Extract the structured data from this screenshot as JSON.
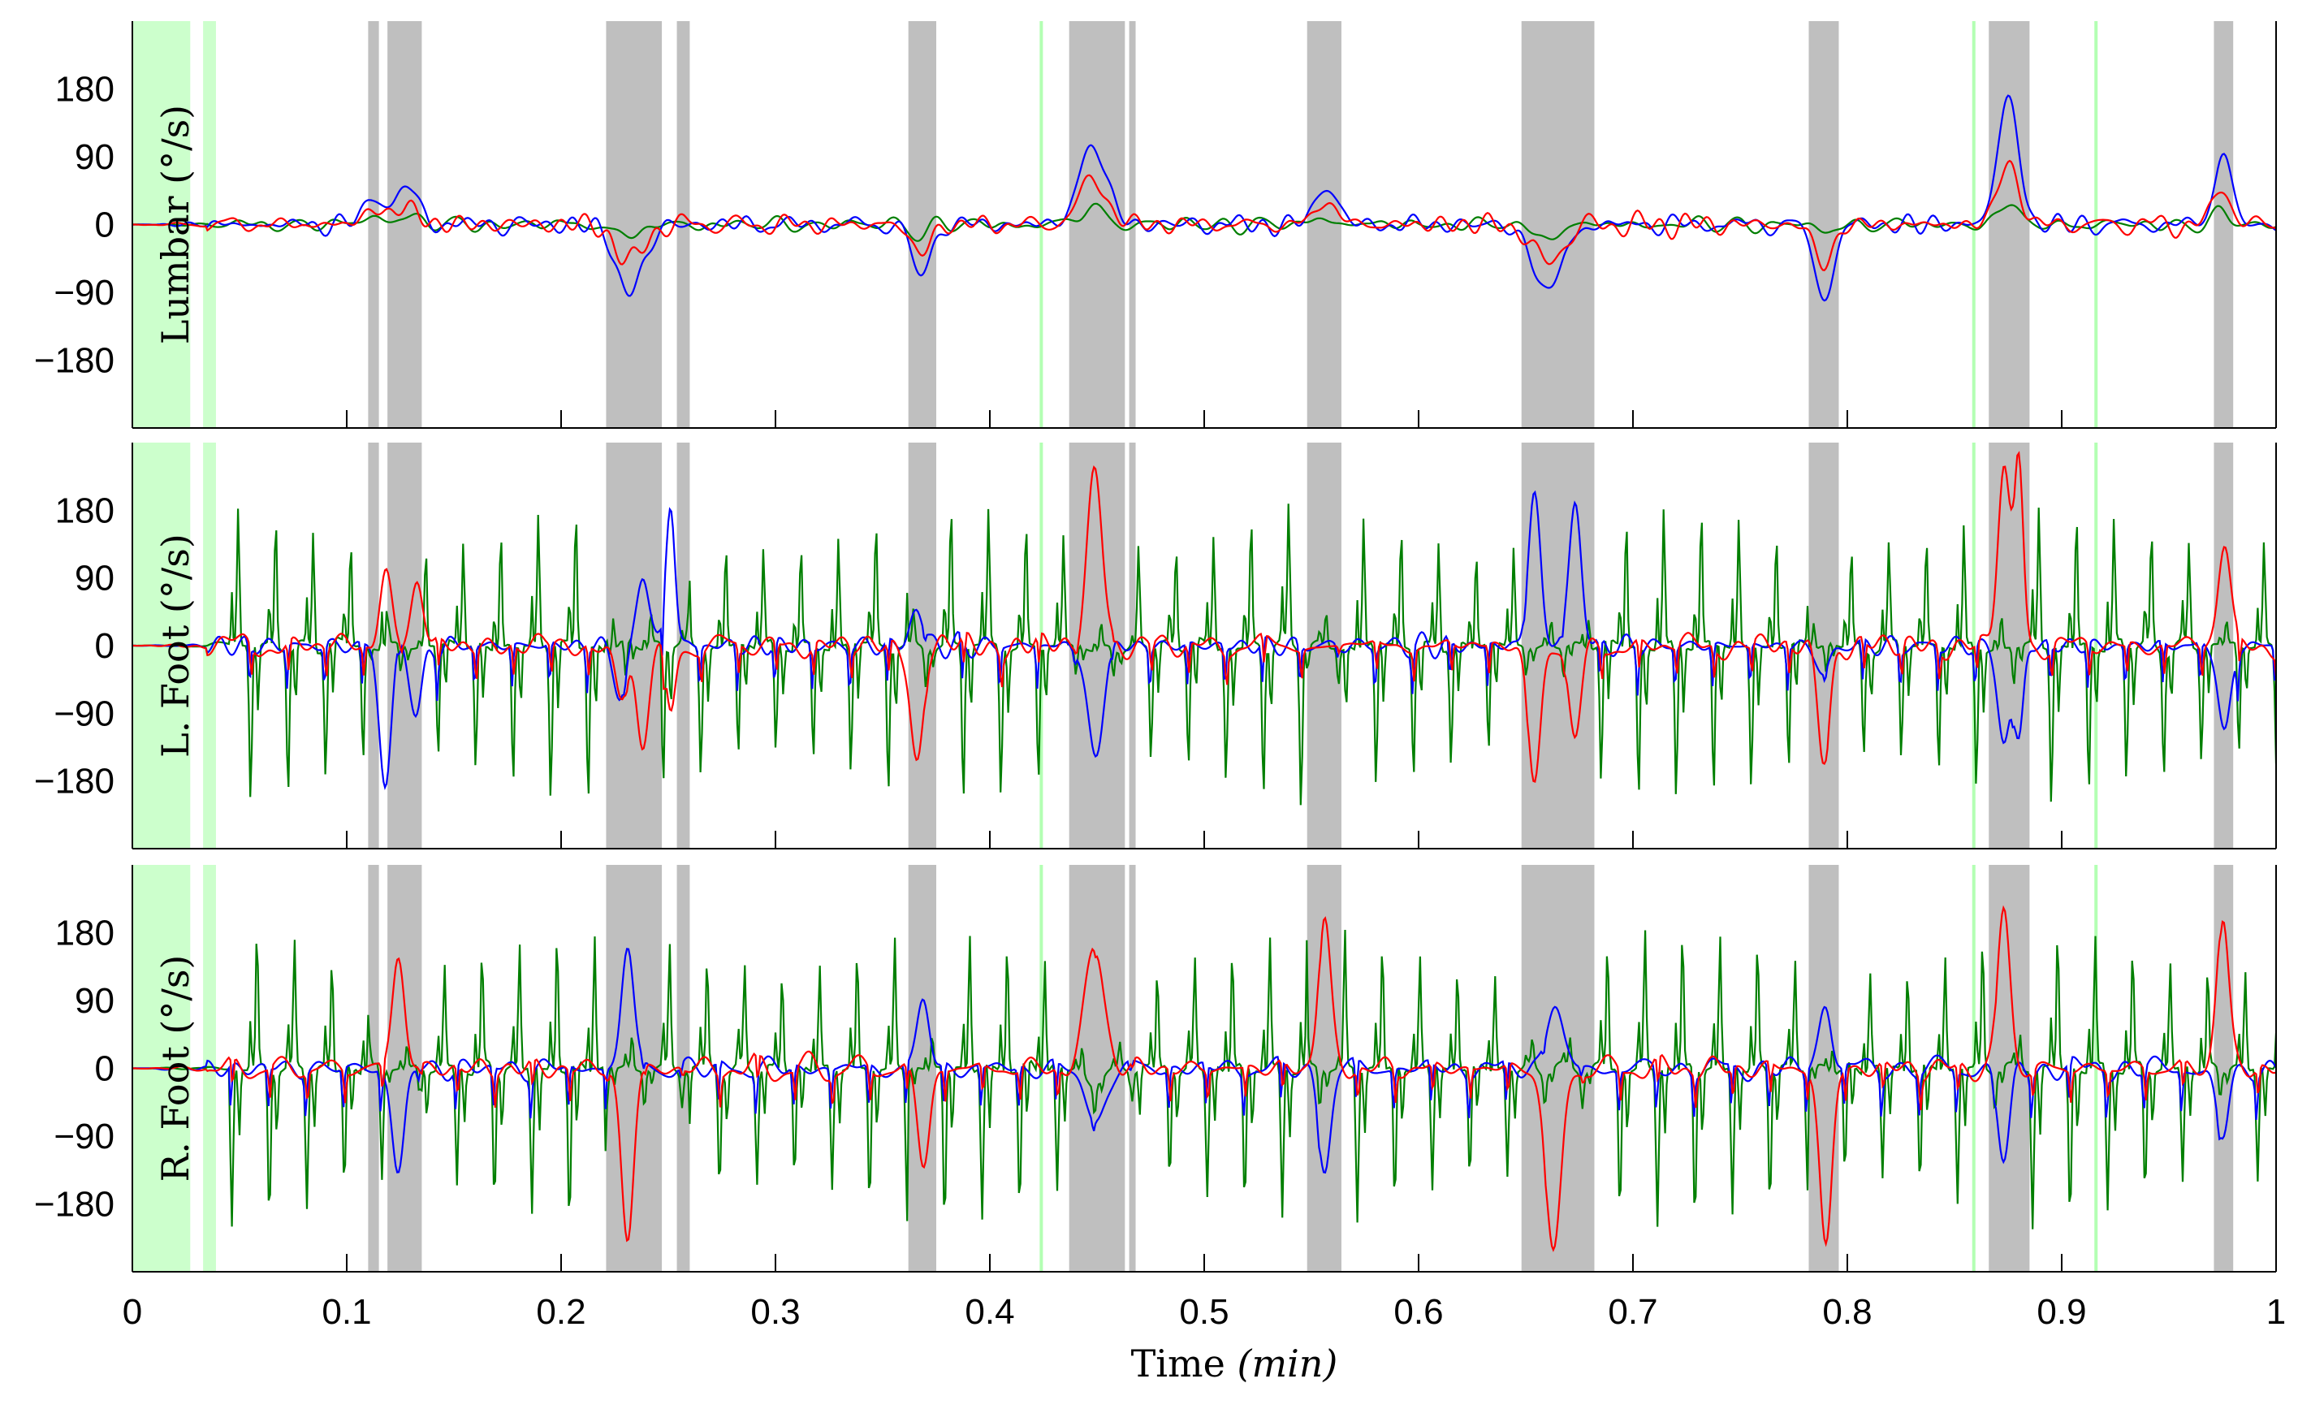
{
  "chart_data": {
    "type": "line",
    "xlabel_text": "Time",
    "xlabel_unit": "(min)",
    "xlim": [
      0,
      1
    ],
    "x_ticks": [
      "0",
      "0.1",
      "0.2",
      "0.3",
      "0.4",
      "0.5",
      "0.6",
      "0.7",
      "0.8",
      "0.9",
      "1"
    ],
    "y_ticks": [
      "180",
      "90",
      "0",
      "−90",
      "−180"
    ],
    "ylim": [
      -270,
      270
    ],
    "colors": {
      "blue": "#0000ff",
      "red": "#ff0000",
      "green": "#007f00",
      "gray": "#bfbfbf",
      "lightgreen": "#ccffcc",
      "thin_green": "#b3ffb3"
    },
    "series_names": [
      "blue",
      "red",
      "green"
    ],
    "gray_intervals": [
      [
        0.11,
        0.115
      ],
      [
        0.119,
        0.135
      ],
      [
        0.221,
        0.247
      ],
      [
        0.254,
        0.26
      ],
      [
        0.362,
        0.375
      ],
      [
        0.437,
        0.463
      ],
      [
        0.465,
        0.468
      ],
      [
        0.548,
        0.564
      ],
      [
        0.648,
        0.682
      ],
      [
        0.782,
        0.796
      ],
      [
        0.866,
        0.885
      ],
      [
        0.971,
        0.98
      ]
    ],
    "green_intervals": [
      [
        0.0,
        0.027
      ],
      [
        0.033,
        0.039
      ]
    ],
    "green_lines": [
      0.424,
      0.859,
      0.916
    ],
    "panels": [
      {
        "id": "lumbar",
        "ylabel": "Lumbar (°/s)",
        "events": [
          {
            "t": 0.113,
            "s": 0.007,
            "blue": 35,
            "red": 20,
            "green": 10
          },
          {
            "t": 0.128,
            "s": 0.008,
            "blue": 45,
            "red": 22,
            "green": 10
          },
          {
            "t": 0.232,
            "s": 0.009,
            "blue": -90,
            "red": -50,
            "green": -15
          },
          {
            "t": 0.368,
            "s": 0.006,
            "blue": -70,
            "red": -40,
            "green": -10
          },
          {
            "t": 0.448,
            "s": 0.009,
            "blue": 105,
            "red": 60,
            "green": 20
          },
          {
            "t": 0.557,
            "s": 0.006,
            "blue": 60,
            "red": 35,
            "green": 10
          },
          {
            "t": 0.66,
            "s": 0.01,
            "blue": -85,
            "red": -50,
            "green": -15
          },
          {
            "t": 0.789,
            "s": 0.006,
            "blue": -100,
            "red": -55,
            "green": -10
          },
          {
            "t": 0.875,
            "s": 0.007,
            "blue": 165,
            "red": 80,
            "green": 25
          },
          {
            "t": 0.975,
            "s": 0.005,
            "blue": 105,
            "red": 55,
            "green": 15
          }
        ],
        "noise": 12,
        "gait": false
      },
      {
        "id": "lfoot",
        "ylabel": "L. Foot (°/s)",
        "events": [
          {
            "t": 0.118,
            "s": 0.004,
            "blue": -180,
            "red": 100,
            "green": 0
          },
          {
            "t": 0.133,
            "s": 0.004,
            "blue": -90,
            "red": 80,
            "green": 0
          },
          {
            "t": 0.228,
            "s": 0.004,
            "blue": -70,
            "red": -70,
            "green": 0
          },
          {
            "t": 0.238,
            "s": 0.004,
            "blue": 100,
            "red": -140,
            "green": 0
          },
          {
            "t": 0.251,
            "s": 0.003,
            "blue": 190,
            "red": -90,
            "green": 0
          },
          {
            "t": 0.366,
            "s": 0.004,
            "blue": 50,
            "red": -160,
            "green": 0
          },
          {
            "t": 0.449,
            "s": 0.005,
            "blue": -150,
            "red": 230,
            "green": -10
          },
          {
            "t": 0.654,
            "s": 0.004,
            "blue": 200,
            "red": -180,
            "green": 0
          },
          {
            "t": 0.673,
            "s": 0.004,
            "blue": 190,
            "red": -130,
            "green": 0
          },
          {
            "t": 0.789,
            "s": 0.004,
            "blue": -40,
            "red": -150,
            "green": 0
          },
          {
            "t": 0.873,
            "s": 0.004,
            "blue": -130,
            "red": 230,
            "green": -10
          },
          {
            "t": 0.88,
            "s": 0.003,
            "blue": -120,
            "red": 250,
            "green": 0
          },
          {
            "t": 0.976,
            "s": 0.004,
            "blue": -120,
            "red": 140,
            "green": 0
          }
        ],
        "noise": 15,
        "gait": true,
        "phase": 0.0
      },
      {
        "id": "rfoot",
        "ylabel": "R. Foot (°/s)",
        "events": [
          {
            "t": 0.124,
            "s": 0.004,
            "blue": -140,
            "red": 150,
            "green": 0
          },
          {
            "t": 0.231,
            "s": 0.004,
            "blue": 160,
            "red": -230,
            "green": 0
          },
          {
            "t": 0.369,
            "s": 0.004,
            "blue": 90,
            "red": -130,
            "green": 0
          },
          {
            "t": 0.449,
            "s": 0.006,
            "blue": -75,
            "red": 165,
            "green": -20
          },
          {
            "t": 0.556,
            "s": 0.004,
            "blue": -130,
            "red": 200,
            "green": 0
          },
          {
            "t": 0.663,
            "s": 0.005,
            "blue": 90,
            "red": -250,
            "green": 0
          },
          {
            "t": 0.79,
            "s": 0.004,
            "blue": 90,
            "red": -240,
            "green": 0
          },
          {
            "t": 0.873,
            "s": 0.004,
            "blue": -120,
            "red": 210,
            "green": 0
          },
          {
            "t": 0.975,
            "s": 0.004,
            "blue": -100,
            "red": 200,
            "green": 0
          }
        ],
        "noise": 15,
        "gait": true,
        "phase": 0.5
      }
    ]
  }
}
